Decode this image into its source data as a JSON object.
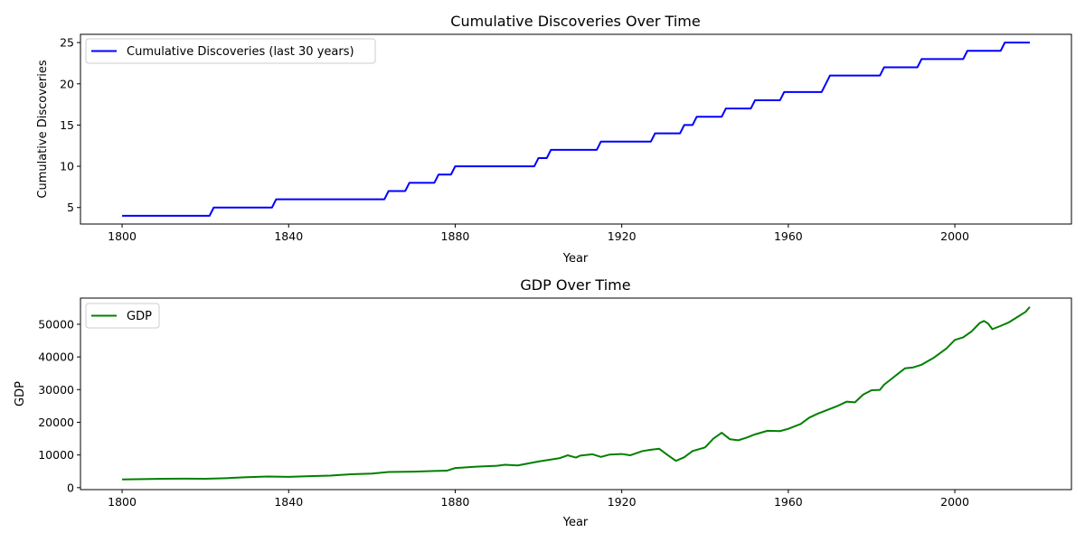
{
  "chart_data": [
    {
      "type": "line",
      "title": "Cumulative Discoveries Over Time",
      "xlabel": "Year",
      "ylabel": "Cumulative Discoveries",
      "xlim": [
        1790,
        2028
      ],
      "ylim": [
        3,
        26
      ],
      "xticks": [
        1800,
        1840,
        1880,
        1920,
        1960,
        2000
      ],
      "yticks": [
        5,
        10,
        15,
        20,
        25
      ],
      "legend_position": "upper left",
      "grid": false,
      "series": [
        {
          "name": "Cumulative Discoveries (last 30 years)",
          "color": "#0000ff",
          "step_points": [
            [
              1800,
              4
            ],
            [
              1821,
              4
            ],
            [
              1822,
              5
            ],
            [
              1836,
              5
            ],
            [
              1837,
              6
            ],
            [
              1863,
              6
            ],
            [
              1864,
              7
            ],
            [
              1868,
              7
            ],
            [
              1869,
              8
            ],
            [
              1875,
              8
            ],
            [
              1876,
              9
            ],
            [
              1879,
              9
            ],
            [
              1880,
              10
            ],
            [
              1899,
              10
            ],
            [
              1900,
              11
            ],
            [
              1902,
              11
            ],
            [
              1903,
              12
            ],
            [
              1914,
              12
            ],
            [
              1915,
              13
            ],
            [
              1927,
              13
            ],
            [
              1928,
              14
            ],
            [
              1934,
              14
            ],
            [
              1935,
              15
            ],
            [
              1937,
              15
            ],
            [
              1938,
              16
            ],
            [
              1944,
              16
            ],
            [
              1945,
              17
            ],
            [
              1951,
              17
            ],
            [
              1952,
              18
            ],
            [
              1958,
              18
            ],
            [
              1959,
              19
            ],
            [
              1968,
              19
            ],
            [
              1970,
              21
            ],
            [
              1982,
              21
            ],
            [
              1983,
              22
            ],
            [
              1991,
              22
            ],
            [
              1992,
              23
            ],
            [
              2002,
              23
            ],
            [
              2003,
              24
            ],
            [
              2011,
              24
            ],
            [
              2012,
              25
            ],
            [
              2018,
              25
            ]
          ]
        }
      ]
    },
    {
      "type": "line",
      "title": "GDP Over Time",
      "xlabel": "Year",
      "ylabel": "GDP",
      "xlim": [
        1790,
        2028
      ],
      "ylim": [
        -600,
        58000
      ],
      "xticks": [
        1800,
        1840,
        1880,
        1920,
        1960,
        2000
      ],
      "yticks": [
        0,
        10000,
        20000,
        30000,
        40000,
        50000
      ],
      "legend_position": "upper left",
      "grid": false,
      "series": [
        {
          "name": "GDP",
          "color": "#008000",
          "points": [
            [
              1800,
              2500
            ],
            [
              1805,
              2600
            ],
            [
              1810,
              2700
            ],
            [
              1815,
              2750
            ],
            [
              1820,
              2700
            ],
            [
              1825,
              2900
            ],
            [
              1830,
              3200
            ],
            [
              1835,
              3400
            ],
            [
              1840,
              3300
            ],
            [
              1845,
              3500
            ],
            [
              1850,
              3700
            ],
            [
              1855,
              4100
            ],
            [
              1860,
              4300
            ],
            [
              1864,
              4800
            ],
            [
              1870,
              4900
            ],
            [
              1875,
              5100
            ],
            [
              1878,
              5200
            ],
            [
              1880,
              6000
            ],
            [
              1885,
              6400
            ],
            [
              1890,
              6700
            ],
            [
              1892,
              7000
            ],
            [
              1895,
              6800
            ],
            [
              1900,
              8000
            ],
            [
              1905,
              9000
            ],
            [
              1907,
              9900
            ],
            [
              1909,
              9200
            ],
            [
              1910,
              9800
            ],
            [
              1913,
              10200
            ],
            [
              1915,
              9400
            ],
            [
              1917,
              10100
            ],
            [
              1920,
              10300
            ],
            [
              1922,
              9900
            ],
            [
              1925,
              11200
            ],
            [
              1927,
              11600
            ],
            [
              1929,
              11900
            ],
            [
              1931,
              10000
            ],
            [
              1933,
              8200
            ],
            [
              1935,
              9300
            ],
            [
              1937,
              11200
            ],
            [
              1940,
              12300
            ],
            [
              1942,
              15000
            ],
            [
              1944,
              16800
            ],
            [
              1946,
              14800
            ],
            [
              1948,
              14500
            ],
            [
              1950,
              15300
            ],
            [
              1952,
              16300
            ],
            [
              1955,
              17400
            ],
            [
              1958,
              17300
            ],
            [
              1960,
              18000
            ],
            [
              1963,
              19500
            ],
            [
              1965,
              21400
            ],
            [
              1967,
              22600
            ],
            [
              1970,
              24100
            ],
            [
              1972,
              25100
            ],
            [
              1974,
              26300
            ],
            [
              1976,
              26100
            ],
            [
              1978,
              28500
            ],
            [
              1980,
              29800
            ],
            [
              1982,
              29900
            ],
            [
              1983,
              31500
            ],
            [
              1985,
              33500
            ],
            [
              1988,
              36500
            ],
            [
              1990,
              36800
            ],
            [
              1992,
              37600
            ],
            [
              1995,
              39800
            ],
            [
              1998,
              42600
            ],
            [
              2000,
              45200
            ],
            [
              2002,
              46000
            ],
            [
              2004,
              47800
            ],
            [
              2006,
              50400
            ],
            [
              2007,
              51000
            ],
            [
              2008,
              50200
            ],
            [
              2009,
              48500
            ],
            [
              2011,
              49500
            ],
            [
              2013,
              50600
            ],
            [
              2015,
              52200
            ],
            [
              2017,
              53800
            ],
            [
              2018,
              55300
            ]
          ]
        }
      ]
    }
  ]
}
